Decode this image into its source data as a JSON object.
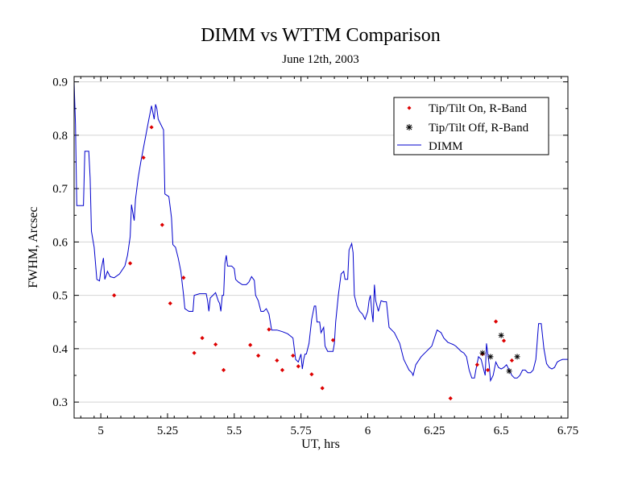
{
  "chart_data": {
    "type": "scatter",
    "title": "DIMM vs WTTM Comparison",
    "subtitle": "June 12th, 2003",
    "xlabel": "UT, hrs",
    "ylabel": "FWHM, Arcsec",
    "xlim": [
      4.9,
      6.75
    ],
    "ylim": [
      0.27,
      0.91
    ],
    "xticks": [
      5,
      5.25,
      5.5,
      5.75,
      6,
      6.25,
      6.5,
      6.75
    ],
    "xtick_labels": [
      "5",
      "5.25",
      "5.5",
      "5.75",
      "6",
      "6.25",
      "6.5",
      "6.75"
    ],
    "yticks": [
      0.3,
      0.4,
      0.5,
      0.6,
      0.7,
      0.8,
      0.9
    ],
    "ytick_labels": [
      "0.3",
      "0.4",
      "0.5",
      "0.6",
      "0.7",
      "0.8",
      "0.9"
    ],
    "grid": "horizontal",
    "legend_position": "top-right",
    "series": [
      {
        "name": "Tip/Tilt On, R-Band",
        "type": "scatter",
        "marker": "diamond",
        "color": "#dd0000",
        "points": [
          [
            5.05,
            0.5
          ],
          [
            5.11,
            0.56
          ],
          [
            5.16,
            0.758
          ],
          [
            5.19,
            0.815
          ],
          [
            5.23,
            0.632
          ],
          [
            5.26,
            0.485
          ],
          [
            5.31,
            0.533
          ],
          [
            5.35,
            0.392
          ],
          [
            5.38,
            0.42
          ],
          [
            5.43,
            0.408
          ],
          [
            5.46,
            0.36
          ],
          [
            5.56,
            0.407
          ],
          [
            5.59,
            0.387
          ],
          [
            5.63,
            0.436
          ],
          [
            5.66,
            0.378
          ],
          [
            5.68,
            0.36
          ],
          [
            5.72,
            0.387
          ],
          [
            5.74,
            0.367
          ],
          [
            5.79,
            0.352
          ],
          [
            5.83,
            0.326
          ],
          [
            5.87,
            0.416
          ],
          [
            6.31,
            0.307
          ],
          [
            6.41,
            0.37
          ],
          [
            6.43,
            0.39
          ],
          [
            6.45,
            0.36
          ],
          [
            6.48,
            0.451
          ],
          [
            6.51,
            0.415
          ],
          [
            6.54,
            0.378
          ]
        ]
      },
      {
        "name": "Tip/Tilt Off, R-Band",
        "type": "scatter",
        "marker": "asterisk",
        "color": "#000000",
        "points": [
          [
            6.43,
            0.392
          ],
          [
            6.46,
            0.385
          ],
          [
            6.5,
            0.425
          ],
          [
            6.53,
            0.358
          ],
          [
            6.56,
            0.385
          ]
        ]
      },
      {
        "name": "DIMM",
        "type": "line",
        "color": "#0000cc",
        "points": [
          [
            4.9,
            0.9
          ],
          [
            4.905,
            0.82
          ],
          [
            4.91,
            0.668
          ],
          [
            4.925,
            0.668
          ],
          [
            4.935,
            0.668
          ],
          [
            4.94,
            0.77
          ],
          [
            4.955,
            0.77
          ],
          [
            4.96,
            0.72
          ],
          [
            4.965,
            0.62
          ],
          [
            4.975,
            0.59
          ],
          [
            4.985,
            0.53
          ],
          [
            4.995,
            0.527
          ],
          [
            5.0,
            0.545
          ],
          [
            5.01,
            0.57
          ],
          [
            5.015,
            0.53
          ],
          [
            5.025,
            0.545
          ],
          [
            5.035,
            0.535
          ],
          [
            5.05,
            0.533
          ],
          [
            5.07,
            0.54
          ],
          [
            5.09,
            0.555
          ],
          [
            5.1,
            0.575
          ],
          [
            5.11,
            0.61
          ],
          [
            5.115,
            0.67
          ],
          [
            5.125,
            0.64
          ],
          [
            5.13,
            0.68
          ],
          [
            5.14,
            0.72
          ],
          [
            5.15,
            0.75
          ],
          [
            5.165,
            0.79
          ],
          [
            5.18,
            0.83
          ],
          [
            5.19,
            0.855
          ],
          [
            5.2,
            0.83
          ],
          [
            5.205,
            0.858
          ],
          [
            5.21,
            0.85
          ],
          [
            5.215,
            0.83
          ],
          [
            5.225,
            0.82
          ],
          [
            5.235,
            0.81
          ],
          [
            5.24,
            0.69
          ],
          [
            5.255,
            0.685
          ],
          [
            5.26,
            0.665
          ],
          [
            5.265,
            0.645
          ],
          [
            5.27,
            0.595
          ],
          [
            5.28,
            0.59
          ],
          [
            5.29,
            0.57
          ],
          [
            5.3,
            0.545
          ],
          [
            5.31,
            0.5
          ],
          [
            5.315,
            0.475
          ],
          [
            5.33,
            0.47
          ],
          [
            5.345,
            0.47
          ],
          [
            5.35,
            0.5
          ],
          [
            5.37,
            0.503
          ],
          [
            5.385,
            0.503
          ],
          [
            5.395,
            0.503
          ],
          [
            5.4,
            0.49
          ],
          [
            5.405,
            0.47
          ],
          [
            5.41,
            0.495
          ],
          [
            5.42,
            0.5
          ],
          [
            5.43,
            0.505
          ],
          [
            5.44,
            0.49
          ],
          [
            5.445,
            0.485
          ],
          [
            5.45,
            0.47
          ],
          [
            5.455,
            0.5
          ],
          [
            5.46,
            0.5
          ],
          [
            5.465,
            0.56
          ],
          [
            5.47,
            0.575
          ],
          [
            5.475,
            0.555
          ],
          [
            5.49,
            0.555
          ],
          [
            5.5,
            0.55
          ],
          [
            5.505,
            0.53
          ],
          [
            5.515,
            0.525
          ],
          [
            5.53,
            0.52
          ],
          [
            5.545,
            0.52
          ],
          [
            5.555,
            0.525
          ],
          [
            5.565,
            0.535
          ],
          [
            5.575,
            0.528
          ],
          [
            5.58,
            0.5
          ],
          [
            5.59,
            0.49
          ],
          [
            5.6,
            0.47
          ],
          [
            5.61,
            0.47
          ],
          [
            5.62,
            0.475
          ],
          [
            5.63,
            0.465
          ],
          [
            5.64,
            0.435
          ],
          [
            5.66,
            0.435
          ],
          [
            5.68,
            0.432
          ],
          [
            5.7,
            0.428
          ],
          [
            5.72,
            0.42
          ],
          [
            5.73,
            0.38
          ],
          [
            5.74,
            0.375
          ],
          [
            5.75,
            0.39
          ],
          [
            5.755,
            0.362
          ],
          [
            5.76,
            0.38
          ],
          [
            5.765,
            0.39
          ],
          [
            5.77,
            0.39
          ],
          [
            5.78,
            0.41
          ],
          [
            5.79,
            0.455
          ],
          [
            5.8,
            0.48
          ],
          [
            5.805,
            0.48
          ],
          [
            5.81,
            0.45
          ],
          [
            5.82,
            0.45
          ],
          [
            5.825,
            0.43
          ],
          [
            5.835,
            0.44
          ],
          [
            5.84,
            0.405
          ],
          [
            5.85,
            0.395
          ],
          [
            5.86,
            0.395
          ],
          [
            5.87,
            0.395
          ],
          [
            5.875,
            0.41
          ],
          [
            5.88,
            0.45
          ],
          [
            5.89,
            0.5
          ],
          [
            5.9,
            0.54
          ],
          [
            5.91,
            0.545
          ],
          [
            5.915,
            0.53
          ],
          [
            5.925,
            0.53
          ],
          [
            5.93,
            0.585
          ],
          [
            5.94,
            0.597
          ],
          [
            5.945,
            0.58
          ],
          [
            5.95,
            0.5
          ],
          [
            5.96,
            0.48
          ],
          [
            5.97,
            0.47
          ],
          [
            5.98,
            0.465
          ],
          [
            5.99,
            0.455
          ],
          [
            6.0,
            0.47
          ],
          [
            6.005,
            0.49
          ],
          [
            6.01,
            0.5
          ],
          [
            6.015,
            0.47
          ],
          [
            6.02,
            0.45
          ],
          [
            6.025,
            0.52
          ],
          [
            6.03,
            0.49
          ],
          [
            6.04,
            0.47
          ],
          [
            6.05,
            0.49
          ],
          [
            6.06,
            0.488
          ],
          [
            6.07,
            0.488
          ],
          [
            6.08,
            0.44
          ],
          [
            6.09,
            0.435
          ],
          [
            6.1,
            0.43
          ],
          [
            6.12,
            0.41
          ],
          [
            6.135,
            0.38
          ],
          [
            6.145,
            0.37
          ],
          [
            6.155,
            0.36
          ],
          [
            6.165,
            0.355
          ],
          [
            6.17,
            0.35
          ],
          [
            6.175,
            0.36
          ],
          [
            6.18,
            0.37
          ],
          [
            6.2,
            0.385
          ],
          [
            6.22,
            0.395
          ],
          [
            6.24,
            0.405
          ],
          [
            6.25,
            0.42
          ],
          [
            6.26,
            0.435
          ],
          [
            6.275,
            0.43
          ],
          [
            6.285,
            0.42
          ],
          [
            6.3,
            0.412
          ],
          [
            6.31,
            0.41
          ],
          [
            6.32,
            0.408
          ],
          [
            6.33,
            0.405
          ],
          [
            6.34,
            0.4
          ],
          [
            6.35,
            0.395
          ],
          [
            6.36,
            0.392
          ],
          [
            6.37,
            0.385
          ],
          [
            6.38,
            0.36
          ],
          [
            6.39,
            0.345
          ],
          [
            6.4,
            0.345
          ],
          [
            6.405,
            0.36
          ],
          [
            6.415,
            0.385
          ],
          [
            6.425,
            0.38
          ],
          [
            6.435,
            0.36
          ],
          [
            6.44,
            0.35
          ],
          [
            6.445,
            0.41
          ],
          [
            6.455,
            0.37
          ],
          [
            6.46,
            0.34
          ],
          [
            6.47,
            0.35
          ],
          [
            6.48,
            0.375
          ],
          [
            6.49,
            0.365
          ],
          [
            6.5,
            0.362
          ],
          [
            6.51,
            0.365
          ],
          [
            6.52,
            0.37
          ],
          [
            6.53,
            0.36
          ],
          [
            6.54,
            0.35
          ],
          [
            6.55,
            0.345
          ],
          [
            6.56,
            0.345
          ],
          [
            6.57,
            0.35
          ],
          [
            6.58,
            0.36
          ],
          [
            6.59,
            0.36
          ],
          [
            6.6,
            0.355
          ],
          [
            6.61,
            0.355
          ],
          [
            6.62,
            0.36
          ],
          [
            6.63,
            0.38
          ],
          [
            6.64,
            0.447
          ],
          [
            6.65,
            0.447
          ],
          [
            6.66,
            0.4
          ],
          [
            6.67,
            0.372
          ],
          [
            6.68,
            0.365
          ],
          [
            6.69,
            0.362
          ],
          [
            6.7,
            0.365
          ],
          [
            6.71,
            0.375
          ],
          [
            6.72,
            0.378
          ],
          [
            6.73,
            0.38
          ],
          [
            6.75,
            0.38
          ]
        ]
      }
    ]
  }
}
